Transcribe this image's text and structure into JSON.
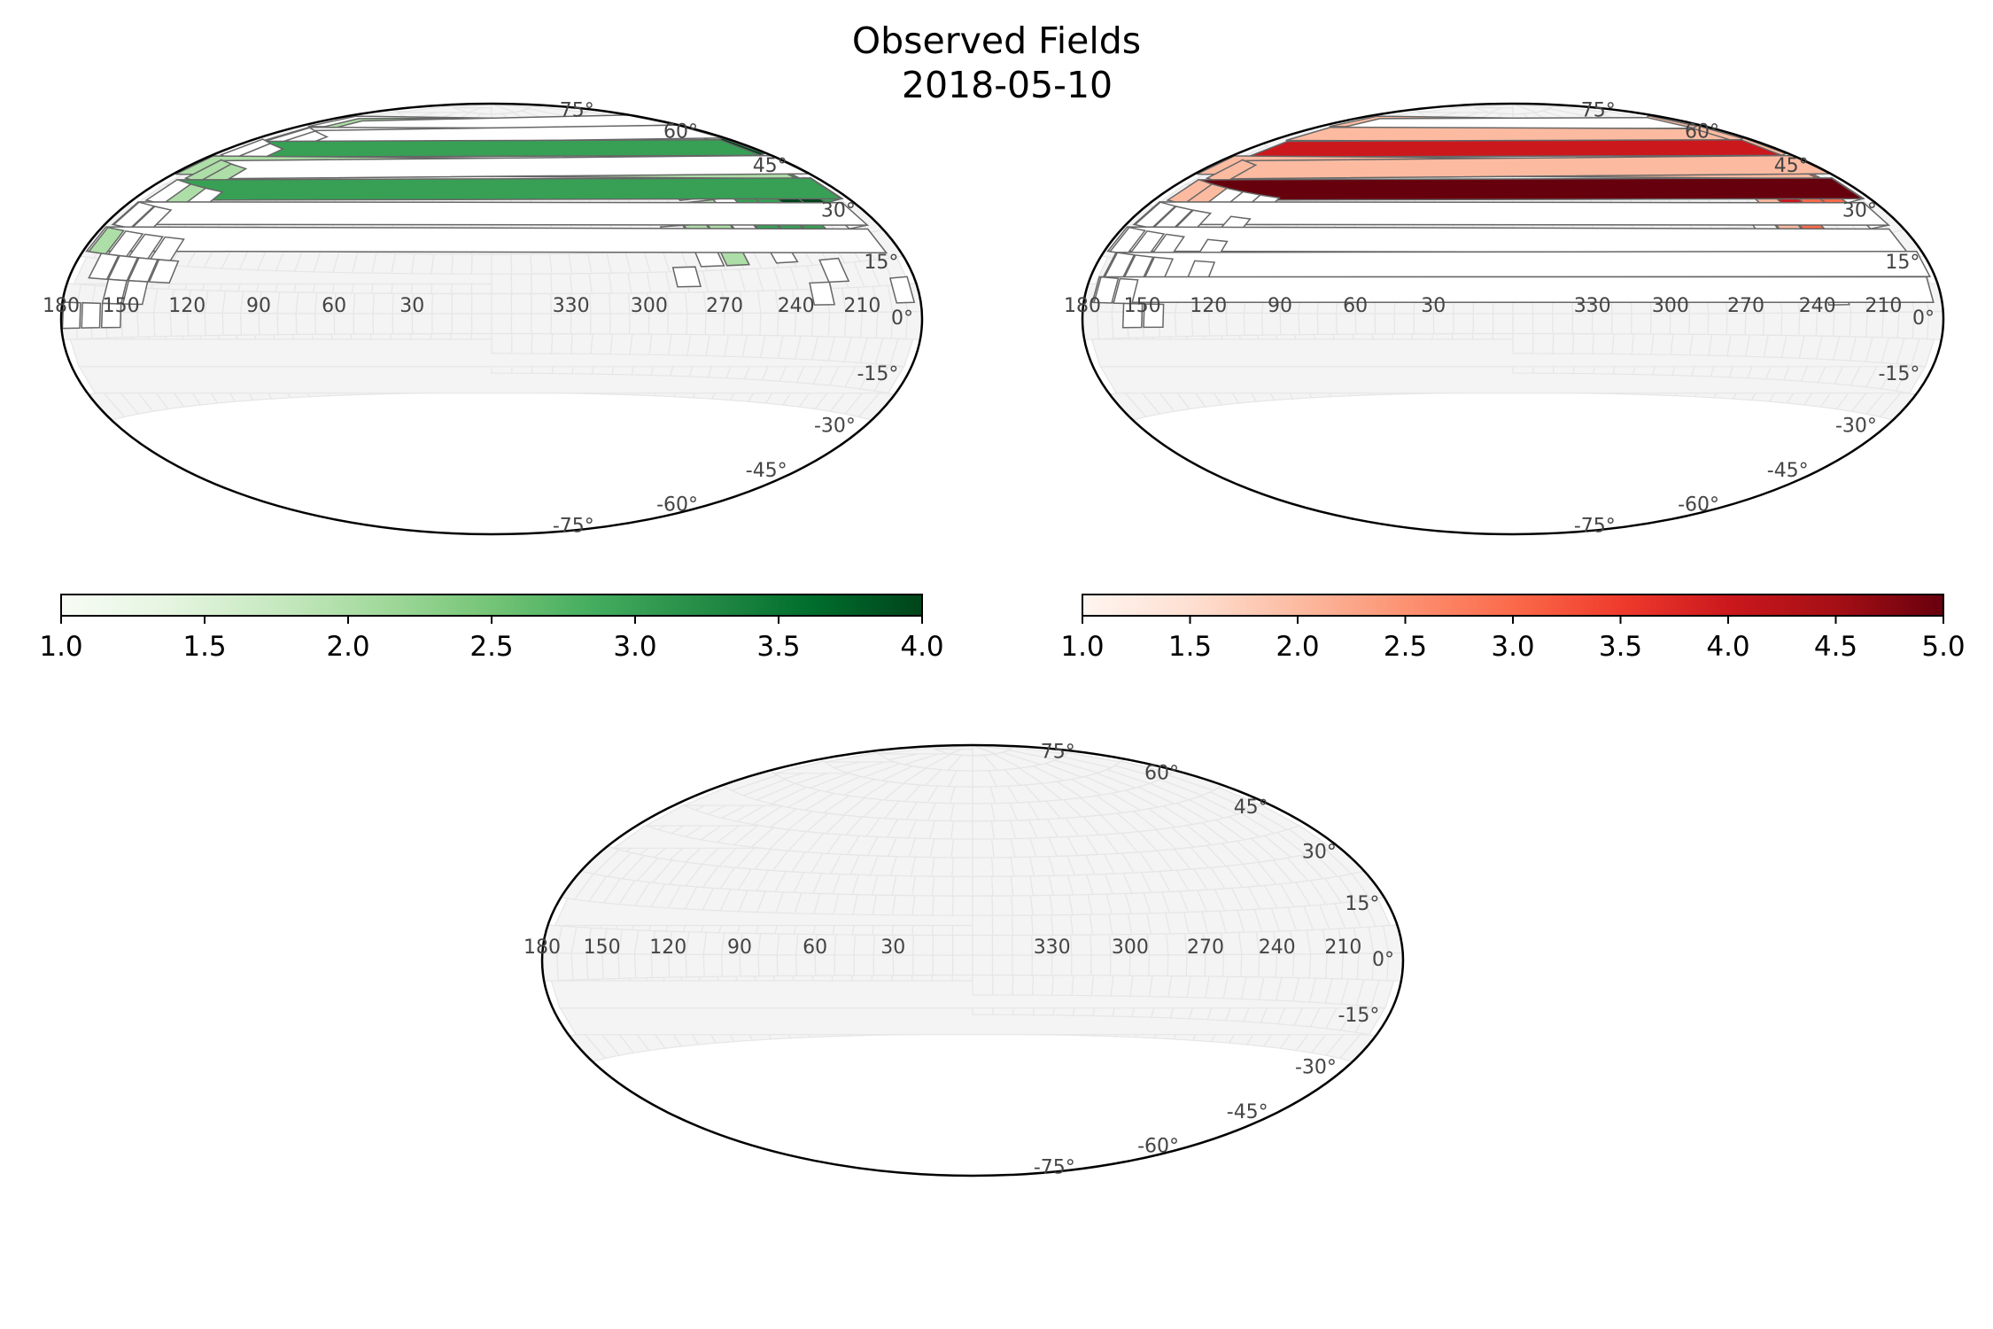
{
  "figure": {
    "title": "Observed Fields",
    "subtitle": "2018-05-10"
  },
  "chart_data": [
    {
      "type": "heatmap",
      "name": "",
      "projection": "hammer",
      "colormap": "Greens",
      "color_range": [
        "#f7fcf5",
        "#00441b"
      ],
      "lon_ticks": [
        "330",
        "300",
        "270",
        "240",
        "210",
        "180",
        "150",
        "120",
        "90",
        "60",
        "30"
      ],
      "lat_ticks": [
        "75°",
        "60°",
        "45°",
        "30°",
        "15°",
        "0°",
        "-15°",
        "-30°",
        "-45°",
        "-60°",
        "-75°"
      ],
      "cbar_ticks": [
        "1.0",
        "1.5",
        "2.0",
        "2.5",
        "3.0",
        "3.5",
        "4.0"
      ],
      "vmin": 1,
      "vmax": 4,
      "fields": [
        {
          "ra": 187,
          "dec": 68,
          "v": 1
        },
        {
          "ra": 196,
          "dec": 68,
          "v": 1
        },
        {
          "ra": 205,
          "dec": 68,
          "v": 1
        },
        {
          "ra": 214,
          "dec": 68,
          "v": 1
        },
        {
          "ra": 178,
          "dec": 68,
          "v": 2
        },
        {
          "ra": 169,
          "dec": 68,
          "v": 1
        },
        {
          "ra": 232,
          "dec": 61,
          "v": 1
        },
        {
          "ra": 222,
          "dec": 61,
          "v": 1
        },
        {
          "ra": 212,
          "dec": 61,
          "v": 3
        },
        {
          "ra": 202,
          "dec": 61,
          "v": 2
        },
        {
          "ra": 192,
          "dec": 61,
          "v": 2
        },
        {
          "ra": 182,
          "dec": 61,
          "v": 1
        },
        {
          "ra": 172,
          "dec": 61,
          "v": 1
        },
        {
          "ra": 162,
          "dec": 61,
          "v": 1
        },
        {
          "ra": 152,
          "dec": 61,
          "v": 1
        },
        {
          "ra": 251,
          "dec": 54,
          "v": 2
        },
        {
          "ra": 241,
          "dec": 54,
          "v": 1
        },
        {
          "ra": 231,
          "dec": 54,
          "v": 1
        },
        {
          "ra": 220,
          "dec": 54,
          "v": 1
        },
        {
          "ra": 210,
          "dec": 54,
          "v": 3
        },
        {
          "ra": 199,
          "dec": 54,
          "v": 2
        },
        {
          "ra": 189,
          "dec": 54,
          "v": 4
        },
        {
          "ra": 178,
          "dec": 54,
          "v": 3
        },
        {
          "ra": 168,
          "dec": 54,
          "v": 1
        },
        {
          "ra": 157,
          "dec": 54,
          "v": 1
        },
        {
          "ra": 260,
          "dec": 46,
          "v": 1
        },
        {
          "ra": 250,
          "dec": 46,
          "v": 1
        },
        {
          "ra": 239,
          "dec": 46,
          "v": 1
        },
        {
          "ra": 229,
          "dec": 46,
          "v": 3
        },
        {
          "ra": 218,
          "dec": 46,
          "v": 2
        },
        {
          "ra": 207,
          "dec": 46,
          "v": 3
        },
        {
          "ra": 196,
          "dec": 46,
          "v": 3
        },
        {
          "ra": 185,
          "dec": 46,
          "v": 2
        },
        {
          "ra": 174,
          "dec": 46,
          "v": 1
        },
        {
          "ra": 163,
          "dec": 46,
          "v": 2
        },
        {
          "ra": 153,
          "dec": 46,
          "v": 2
        },
        {
          "ra": 276,
          "dec": 38,
          "v": 2
        },
        {
          "ra": 265,
          "dec": 38,
          "v": 2
        },
        {
          "ra": 255,
          "dec": 38,
          "v": 2
        },
        {
          "ra": 244,
          "dec": 38,
          "v": 1
        },
        {
          "ra": 233,
          "dec": 38,
          "v": 3
        },
        {
          "ra": 222,
          "dec": 38,
          "v": 3
        },
        {
          "ra": 211,
          "dec": 38,
          "v": 4
        },
        {
          "ra": 200,
          "dec": 38,
          "v": 4
        },
        {
          "ra": 189,
          "dec": 38,
          "v": 3
        },
        {
          "ra": 178,
          "dec": 38,
          "v": 3
        },
        {
          "ra": 167,
          "dec": 38,
          "v": 1
        },
        {
          "ra": 156,
          "dec": 38,
          "v": 2
        },
        {
          "ra": 145,
          "dec": 38,
          "v": 1
        },
        {
          "ra": 280,
          "dec": 30,
          "v": 1
        },
        {
          "ra": 269,
          "dec": 30,
          "v": 2
        },
        {
          "ra": 258,
          "dec": 30,
          "v": 2
        },
        {
          "ra": 247,
          "dec": 30,
          "v": 1
        },
        {
          "ra": 236,
          "dec": 30,
          "v": 3
        },
        {
          "ra": 225,
          "dec": 30,
          "v": 3
        },
        {
          "ra": 214,
          "dec": 30,
          "v": 3
        },
        {
          "ra": 192,
          "dec": 30,
          "v": 1
        },
        {
          "ra": 181,
          "dec": 30,
          "v": 1
        },
        {
          "ra": 170,
          "dec": 30,
          "v": 1
        },
        {
          "ra": 159,
          "dec": 30,
          "v": 1
        },
        {
          "ra": 271,
          "dec": 22,
          "v": 1
        },
        {
          "ra": 260,
          "dec": 22,
          "v": 2
        },
        {
          "ra": 238,
          "dec": 22,
          "v": 1
        },
        {
          "ra": 183,
          "dec": 22,
          "v": 1
        },
        {
          "ra": 172,
          "dec": 22,
          "v": 2
        },
        {
          "ra": 161,
          "dec": 22,
          "v": 1
        },
        {
          "ra": 150,
          "dec": 22,
          "v": 1
        },
        {
          "ra": 139,
          "dec": 22,
          "v": 1
        },
        {
          "ra": 283,
          "dec": 15,
          "v": 1
        },
        {
          "ra": 218,
          "dec": 15,
          "v": 1
        },
        {
          "ra": 165,
          "dec": 15,
          "v": 1
        },
        {
          "ra": 155,
          "dec": 15,
          "v": 1
        },
        {
          "ra": 145,
          "dec": 15,
          "v": 1
        },
        {
          "ra": 135,
          "dec": 15,
          "v": 1
        },
        {
          "ra": 227,
          "dec": 8,
          "v": 1
        },
        {
          "ra": 188,
          "dec": 8,
          "v": 1
        },
        {
          "ra": 155,
          "dec": 8,
          "v": 1
        },
        {
          "ra": 145,
          "dec": 8,
          "v": 1
        },
        {
          "ra": 175,
          "dec": 1,
          "v": 1
        },
        {
          "ra": 165,
          "dec": 1,
          "v": 1
        },
        {
          "ra": 155,
          "dec": 1,
          "v": 1
        }
      ]
    },
    {
      "type": "heatmap",
      "name": "",
      "projection": "hammer",
      "colormap": "Reds",
      "color_range": [
        "#fff5f0",
        "#67000d"
      ],
      "lon_ticks": [
        "330",
        "300",
        "270",
        "240",
        "210",
        "180",
        "150",
        "120",
        "90",
        "60",
        "30"
      ],
      "lat_ticks": [
        "75°",
        "60°",
        "45°",
        "30°",
        "15°",
        "0°",
        "-15°",
        "-30°",
        "-45°",
        "-60°",
        "-75°"
      ],
      "cbar_ticks": [
        "1.0",
        "1.5",
        "2.0",
        "2.5",
        "3.0",
        "3.5",
        "4.0",
        "4.5",
        "5.0"
      ],
      "vmin": 1,
      "vmax": 5,
      "fields": [
        {
          "ra": 205,
          "dec": 68,
          "v": 2
        },
        {
          "ra": 196,
          "dec": 68,
          "v": 2
        },
        {
          "ra": 187,
          "dec": 68,
          "v": 2
        },
        {
          "ra": 178,
          "dec": 68,
          "v": 1
        },
        {
          "ra": 212,
          "dec": 61,
          "v": 2
        },
        {
          "ra": 202,
          "dec": 61,
          "v": 3
        },
        {
          "ra": 192,
          "dec": 61,
          "v": 2
        },
        {
          "ra": 182,
          "dec": 61,
          "v": 2
        },
        {
          "ra": 220,
          "dec": 54,
          "v": 2
        },
        {
          "ra": 210,
          "dec": 54,
          "v": 3
        },
        {
          "ra": 199,
          "dec": 54,
          "v": 2
        },
        {
          "ra": 189,
          "dec": 54,
          "v": 2
        },
        {
          "ra": 178,
          "dec": 54,
          "v": 4
        },
        {
          "ra": 229,
          "dec": 46,
          "v": 1
        },
        {
          "ra": 218,
          "dec": 46,
          "v": 2
        },
        {
          "ra": 207,
          "dec": 46,
          "v": 3
        },
        {
          "ra": 196,
          "dec": 46,
          "v": 3
        },
        {
          "ra": 185,
          "dec": 46,
          "v": 2
        },
        {
          "ra": 174,
          "dec": 46,
          "v": 2
        },
        {
          "ra": 163,
          "dec": 46,
          "v": 2
        },
        {
          "ra": 233,
          "dec": 38,
          "v": 2
        },
        {
          "ra": 222,
          "dec": 38,
          "v": 4
        },
        {
          "ra": 211,
          "dec": 38,
          "v": 3
        },
        {
          "ra": 200,
          "dec": 38,
          "v": 3
        },
        {
          "ra": 189,
          "dec": 38,
          "v": 1
        },
        {
          "ra": 178,
          "dec": 38,
          "v": 5
        },
        {
          "ra": 167,
          "dec": 38,
          "v": 2
        },
        {
          "ra": 156,
          "dec": 38,
          "v": 2
        },
        {
          "ra": 145,
          "dec": 38,
          "v": 1
        },
        {
          "ra": 134,
          "dec": 38,
          "v": 1
        },
        {
          "ra": 123,
          "dec": 38,
          "v": 1
        },
        {
          "ra": 247,
          "dec": 30,
          "v": 1
        },
        {
          "ra": 236,
          "dec": 30,
          "v": 2
        },
        {
          "ra": 225,
          "dec": 30,
          "v": 3
        },
        {
          "ra": 192,
          "dec": 30,
          "v": 1
        },
        {
          "ra": 181,
          "dec": 30,
          "v": 1
        },
        {
          "ra": 170,
          "dec": 30,
          "v": 1
        },
        {
          "ra": 159,
          "dec": 30,
          "v": 1
        },
        {
          "ra": 148,
          "dec": 30,
          "v": 1
        },
        {
          "ra": 126,
          "dec": 30,
          "v": 1
        },
        {
          "ra": 260,
          "dec": 22,
          "v": 1
        },
        {
          "ra": 238,
          "dec": 22,
          "v": 1
        },
        {
          "ra": 194,
          "dec": 22,
          "v": 1
        },
        {
          "ra": 183,
          "dec": 22,
          "v": 1
        },
        {
          "ra": 172,
          "dec": 22,
          "v": 1
        },
        {
          "ra": 161,
          "dec": 22,
          "v": 1
        },
        {
          "ra": 150,
          "dec": 22,
          "v": 1
        },
        {
          "ra": 128,
          "dec": 22,
          "v": 1
        },
        {
          "ra": 238,
          "dec": 15,
          "v": 1
        },
        {
          "ra": 198,
          "dec": 15,
          "v": 1
        },
        {
          "ra": 188,
          "dec": 15,
          "v": 1
        },
        {
          "ra": 178,
          "dec": 15,
          "v": 1
        },
        {
          "ra": 168,
          "dec": 15,
          "v": 1
        },
        {
          "ra": 158,
          "dec": 15,
          "v": 1
        },
        {
          "ra": 148,
          "dec": 15,
          "v": 1
        },
        {
          "ra": 128,
          "dec": 15,
          "v": 1
        },
        {
          "ra": 230,
          "dec": 8,
          "v": 1
        },
        {
          "ra": 180,
          "dec": 8,
          "v": 1
        },
        {
          "ra": 170,
          "dec": 8,
          "v": 1
        },
        {
          "ra": 160,
          "dec": 8,
          "v": 1
        },
        {
          "ra": 155,
          "dec": 1,
          "v": 1
        },
        {
          "ra": 145,
          "dec": 1,
          "v": 1
        }
      ]
    },
    {
      "type": "heatmap",
      "name": "",
      "projection": "hammer",
      "colormap": "none",
      "lon_ticks": [
        "330",
        "300",
        "270",
        "240",
        "210",
        "180",
        "150",
        "120",
        "90",
        "60",
        "30"
      ],
      "lat_ticks": [
        "75°",
        "60°",
        "45°",
        "30°",
        "15°",
        "0°",
        "-15°",
        "-30°",
        "-45°",
        "-60°",
        "-75°"
      ],
      "fields": []
    }
  ]
}
